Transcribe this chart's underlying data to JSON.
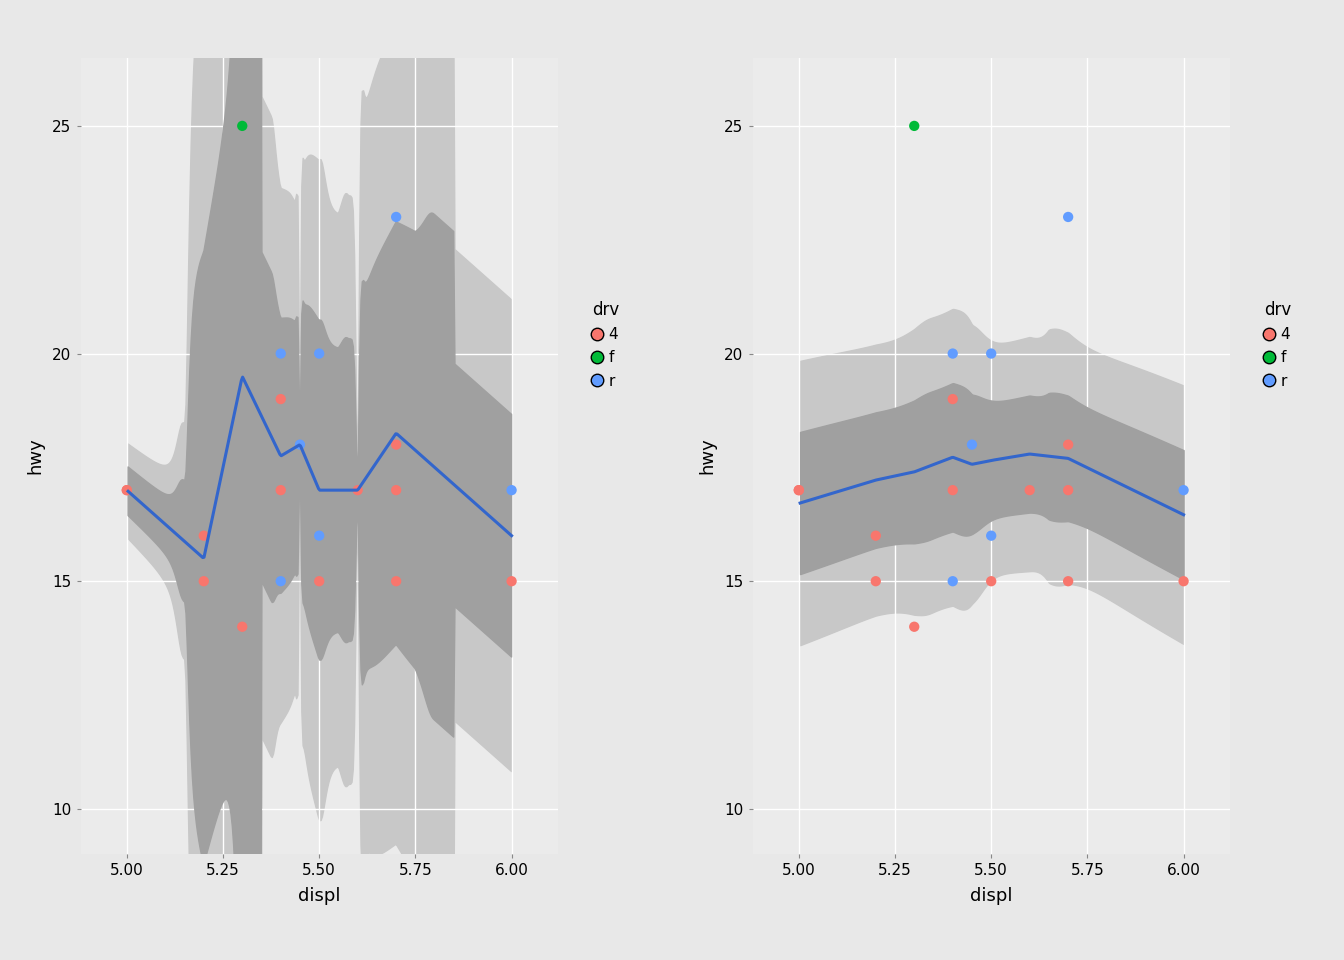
{
  "points": [
    {
      "displ": 5.0,
      "hwy": 17,
      "drv": "4"
    },
    {
      "displ": 5.0,
      "hwy": 17,
      "drv": "4"
    },
    {
      "displ": 5.2,
      "hwy": 16,
      "drv": "4"
    },
    {
      "displ": 5.2,
      "hwy": 15,
      "drv": "4"
    },
    {
      "displ": 5.3,
      "hwy": 14,
      "drv": "4"
    },
    {
      "displ": 5.3,
      "hwy": 25,
      "drv": "f"
    },
    {
      "displ": 5.4,
      "hwy": 19,
      "drv": "4"
    },
    {
      "displ": 5.4,
      "hwy": 17,
      "drv": "4"
    },
    {
      "displ": 5.4,
      "hwy": 20,
      "drv": "r"
    },
    {
      "displ": 5.4,
      "hwy": 15,
      "drv": "r"
    },
    {
      "displ": 5.45,
      "hwy": 18,
      "drv": "r"
    },
    {
      "displ": 5.5,
      "hwy": 20,
      "drv": "r"
    },
    {
      "displ": 5.5,
      "hwy": 15,
      "drv": "4"
    },
    {
      "displ": 5.5,
      "hwy": 16,
      "drv": "r"
    },
    {
      "displ": 5.6,
      "hwy": 17,
      "drv": "4"
    },
    {
      "displ": 5.7,
      "hwy": 18,
      "drv": "4"
    },
    {
      "displ": 5.7,
      "hwy": 17,
      "drv": "4"
    },
    {
      "displ": 5.7,
      "hwy": 15,
      "drv": "4"
    },
    {
      "displ": 5.7,
      "hwy": 23,
      "drv": "r"
    },
    {
      "displ": 6.0,
      "hwy": 17,
      "drv": "r"
    },
    {
      "displ": 6.0,
      "hwy": 15,
      "drv": "4"
    }
  ],
  "color_map": {
    "4": "#F8766D",
    "f": "#00BA38",
    "r": "#619CFF"
  },
  "xlim": [
    4.88,
    6.12
  ],
  "ylim": [
    9.0,
    26.5
  ],
  "xticks": [
    5.0,
    5.25,
    5.5,
    5.75,
    6.0
  ],
  "yticks": [
    10,
    15,
    20,
    25
  ],
  "xlabel": "displ",
  "ylabel": "hwy",
  "legend_title": "drv",
  "legend_entries": [
    "4",
    "f",
    "r"
  ],
  "bg_color": "#EBEBEB",
  "grid_color": "#FFFFFF",
  "smooth_color": "#3366CC",
  "smooth_lw": 2.2,
  "ci_outer_color": "#C8C8C8",
  "ci_inner_color": "#A0A0A0",
  "point_size": 55,
  "point_alpha": 1.0,
  "outer_bg": "#E8E8E8"
}
